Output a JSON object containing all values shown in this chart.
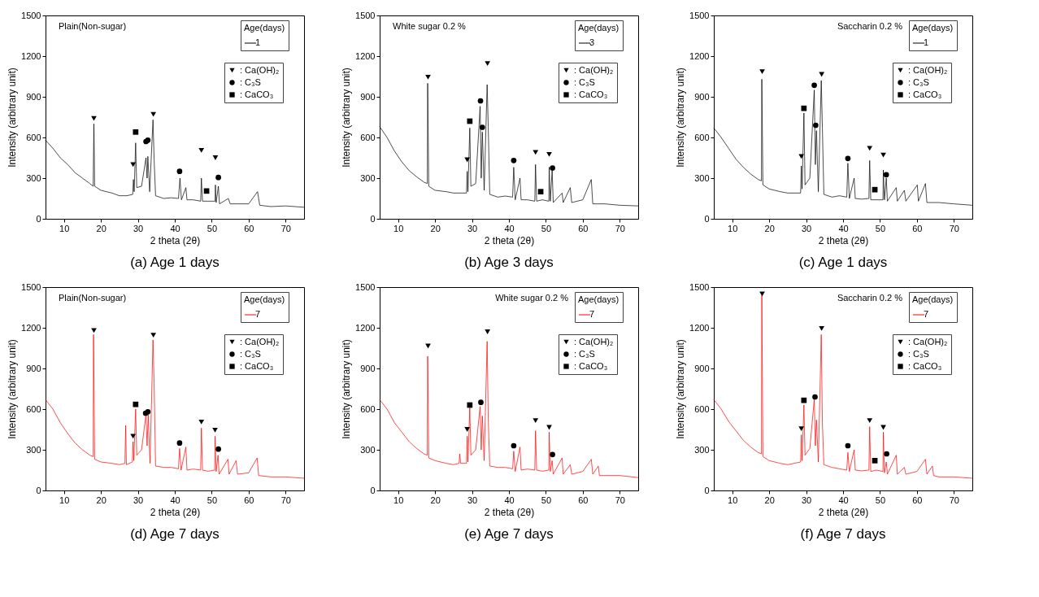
{
  "chart_data": [
    {
      "type": "line",
      "title": "(a) Age 1 days",
      "xlabel": "2 theta (2θ)",
      "ylabel": "Intensity (arbitrary unit)",
      "legend_title": "Age(days)",
      "legend": "top right",
      "annotations": [
        "Plain(Non-sugar)"
      ],
      "xlim": [
        5,
        75
      ],
      "xticks": [
        10,
        20,
        30,
        40,
        50,
        60,
        70
      ],
      "ylim": [
        0,
        1500
      ],
      "yticks": [
        0,
        300,
        600,
        900,
        1200,
        1500
      ],
      "series": [
        {
          "name": "1",
          "type": "line",
          "color": "#000000",
          "x": [
            5,
            7,
            9,
            11,
            13,
            15,
            17,
            17.9,
            18.1,
            18.3,
            20,
            23,
            25,
            27,
            28.6,
            28.8,
            29,
            29.4,
            29.7,
            31,
            32.2,
            32.5,
            32.7,
            33.2,
            34.1,
            34.4,
            34.8,
            37,
            39,
            41,
            41.4,
            41.8,
            43,
            43.3,
            45,
            47,
            47.2,
            47.5,
            49,
            50.9,
            51,
            51.2,
            51.8,
            52.1,
            54.5,
            55,
            57,
            60,
            62.4,
            63,
            66,
            70,
            75
          ],
          "values": [
            580,
            520,
            450,
            400,
            340,
            300,
            260,
            240,
            700,
            240,
            210,
            190,
            170,
            170,
            180,
            290,
            200,
            560,
            230,
            240,
            450,
            300,
            460,
            200,
            730,
            440,
            170,
            150,
            155,
            150,
            300,
            140,
            230,
            140,
            140,
            130,
            300,
            130,
            130,
            130,
            250,
            120,
            240,
            110,
            150,
            110,
            110,
            110,
            200,
            100,
            90,
            95,
            85
          ]
        },
        {
          "name": ": Ca(OH)₂",
          "type": "scatter",
          "marker": "triangle",
          "color": "#000000",
          "x": [
            18.1,
            28.7,
            34.2,
            47.2,
            51
          ],
          "values": [
            740,
            400,
            770,
            505,
            450
          ]
        },
        {
          "name": ": C₃S",
          "type": "scatter",
          "marker": "circle",
          "color": "#000000",
          "x": [
            32.2,
            32.7,
            41.3,
            51.8
          ],
          "values": [
            570,
            580,
            350,
            305
          ]
        },
        {
          "name": ": CaCO₃",
          "type": "scatter",
          "marker": "square",
          "color": "#000000",
          "x": [
            29.4,
            48.6
          ],
          "values": [
            640,
            205
          ]
        }
      ]
    },
    {
      "type": "line",
      "title": "(b) Age 3 days",
      "xlabel": "2 theta (2θ)",
      "ylabel": "Intensity (arbitrary unit)",
      "legend_title": "Age(days)",
      "legend": "top right",
      "annotations": [
        "White sugar 0.2 %"
      ],
      "xlim": [
        5,
        75
      ],
      "xticks": [
        10,
        20,
        30,
        40,
        50,
        60,
        70
      ],
      "ylim": [
        0,
        1500
      ],
      "yticks": [
        0,
        300,
        600,
        900,
        1200,
        1500
      ],
      "series": [
        {
          "name": "3",
          "type": "line",
          "color": "#000000",
          "x": [
            5,
            7,
            9,
            11,
            13,
            15,
            17,
            17.9,
            18,
            18.3,
            20,
            23,
            25,
            28.5,
            28.7,
            28.9,
            29.4,
            29.7,
            31,
            32.2,
            32.5,
            32.8,
            33.3,
            34.1,
            34.4,
            34.8,
            37,
            39,
            41,
            41.3,
            41.7,
            43,
            43.3,
            45,
            47,
            47.2,
            47.5,
            49,
            50.8,
            50.9,
            51.2,
            51.7,
            52,
            54.4,
            54.7,
            56.6,
            57,
            60,
            62.3,
            62.7,
            66,
            70,
            75
          ],
          "values": [
            680,
            600,
            500,
            420,
            355,
            310,
            270,
            260,
            1000,
            240,
            210,
            200,
            190,
            190,
            350,
            200,
            670,
            240,
            260,
            830,
            300,
            640,
            210,
            990,
            680,
            180,
            160,
            168,
            160,
            380,
            140,
            300,
            140,
            140,
            130,
            400,
            130,
            140,
            130,
            380,
            130,
            360,
            120,
            190,
            120,
            230,
            120,
            140,
            290,
            110,
            110,
            100,
            95
          ]
        },
        {
          "name": ": Ca(OH)₂",
          "type": "scatter",
          "marker": "triangle",
          "color": "#000000",
          "x": [
            18.1,
            28.7,
            34.2,
            47.2,
            50.9
          ],
          "values": [
            1045,
            435,
            1145,
            490,
            475
          ]
        },
        {
          "name": ": C₃S",
          "type": "scatter",
          "marker": "circle",
          "color": "#000000",
          "x": [
            32.3,
            32.8,
            41.3,
            51.8
          ],
          "values": [
            870,
            675,
            430,
            375
          ]
        },
        {
          "name": ": CaCO₃",
          "type": "scatter",
          "marker": "square",
          "color": "#000000",
          "x": [
            29.4,
            48.6
          ],
          "values": [
            720,
            200
          ]
        }
      ]
    },
    {
      "type": "line",
      "title": "(c) Age 1 days",
      "xlabel": "2 theta (2θ)",
      "ylabel": "Intensity (arbitrary unit)",
      "legend_title": "Age(days)",
      "legend": "top right",
      "annotations": [
        "Saccharin 0.2 %"
      ],
      "xlim": [
        5,
        75
      ],
      "xticks": [
        10,
        20,
        30,
        40,
        50,
        60,
        70
      ],
      "ylim": [
        0,
        1500
      ],
      "yticks": [
        0,
        300,
        600,
        900,
        1200,
        1500
      ],
      "series": [
        {
          "name": "1",
          "type": "line",
          "color": "#000000",
          "x": [
            5,
            7,
            9,
            11,
            13,
            15,
            17,
            17.9,
            18,
            18.3,
            20,
            23,
            25,
            28.5,
            28.7,
            28.9,
            29.4,
            29.7,
            31,
            32.2,
            32.5,
            32.8,
            33.3,
            34.1,
            34.4,
            34.8,
            37,
            39,
            41,
            41.3,
            41.7,
            43,
            43.3,
            45,
            47,
            47.2,
            47.5,
            49,
            50.8,
            50.9,
            51.2,
            51.7,
            52,
            54.4,
            54.7,
            56.6,
            57,
            60.1,
            60.4,
            62.3,
            62.7,
            66,
            70,
            75
          ],
          "values": [
            670,
            600,
            520,
            440,
            380,
            330,
            290,
            280,
            1030,
            250,
            220,
            200,
            190,
            190,
            390,
            220,
            780,
            250,
            300,
            950,
            400,
            650,
            200,
            1020,
            670,
            180,
            160,
            170,
            160,
            410,
            150,
            300,
            150,
            145,
            150,
            430,
            140,
            140,
            140,
            360,
            140,
            300,
            130,
            230,
            130,
            210,
            130,
            250,
            130,
            260,
            120,
            120,
            110,
            100
          ]
        },
        {
          "name": ": Ca(OH)₂",
          "type": "scatter",
          "marker": "triangle",
          "color": "#000000",
          "x": [
            18.1,
            28.7,
            34.2,
            47.2,
            50.9
          ],
          "values": [
            1085,
            460,
            1065,
            520,
            470
          ]
        },
        {
          "name": ": C₃S",
          "type": "scatter",
          "marker": "circle",
          "color": "#000000",
          "x": [
            32.2,
            32.6,
            41.3,
            51.7
          ],
          "values": [
            985,
            690,
            445,
            325
          ]
        },
        {
          "name": ": CaCO₃",
          "type": "scatter",
          "marker": "square",
          "color": "#000000",
          "x": [
            29.4,
            48.6
          ],
          "values": [
            815,
            215
          ]
        }
      ]
    },
    {
      "type": "line",
      "title": "(d) Age 7 days",
      "xlabel": "2 theta (2θ)",
      "ylabel": "Intensity (arbitrary unit)",
      "legend_title": "Age(days)",
      "legend": "top right",
      "annotations": [
        "Plain(Non-sugar)"
      ],
      "xlim": [
        5,
        75
      ],
      "xticks": [
        10,
        20,
        30,
        40,
        50,
        60,
        70
      ],
      "ylim": [
        0,
        1500
      ],
      "yticks": [
        0,
        300,
        600,
        900,
        1200,
        1500
      ],
      "series": [
        {
          "name": "7",
          "type": "line",
          "color": "#ff0000",
          "x": [
            5,
            7,
            9,
            11,
            13,
            15,
            17,
            17.9,
            18,
            18.3,
            20,
            23,
            25,
            26.5,
            26.7,
            26.9,
            28.5,
            28.7,
            28.9,
            29.4,
            29.7,
            31,
            32.2,
            32.5,
            32.8,
            33.3,
            34.1,
            34.4,
            34.8,
            37,
            39,
            41,
            41.3,
            41.7,
            43,
            43.3,
            45,
            47,
            47.2,
            47.5,
            49,
            50.8,
            50.9,
            51.2,
            51.7,
            52,
            54.4,
            54.7,
            56.6,
            57,
            60,
            62.3,
            62.7,
            66,
            70,
            75
          ],
          "values": [
            670,
            600,
            500,
            420,
            350,
            300,
            260,
            250,
            1150,
            230,
            210,
            200,
            190,
            200,
            480,
            190,
            210,
            360,
            220,
            600,
            260,
            300,
            560,
            330,
            560,
            200,
            1110,
            790,
            180,
            170,
            170,
            160,
            310,
            150,
            320,
            150,
            158,
            150,
            460,
            150,
            142,
            150,
            400,
            140,
            260,
            120,
            230,
            120,
            220,
            120,
            130,
            240,
            110,
            100,
            100,
            90
          ]
        },
        {
          "name": ": Ca(OH)₂",
          "type": "scatter",
          "marker": "triangle",
          "color": "#000000",
          "x": [
            18.1,
            28.7,
            34.2,
            47.2,
            50.9
          ],
          "values": [
            1180,
            400,
            1145,
            505,
            445
          ]
        },
        {
          "name": ": C₃S",
          "type": "scatter",
          "marker": "circle",
          "color": "#000000",
          "x": [
            32.1,
            32.7,
            41.3,
            51.8
          ],
          "values": [
            570,
            580,
            350,
            305
          ]
        },
        {
          "name": ": CaCO₃",
          "type": "scatter",
          "marker": "square",
          "color": "#000000",
          "x": [
            29.4
          ],
          "values": [
            635
          ]
        }
      ]
    },
    {
      "type": "line",
      "title": "(e) Age 7 days",
      "xlabel": "2 theta (2θ)",
      "ylabel": "Intensity (arbitrary unit)",
      "legend_title": "Age(days)",
      "legend": "top right",
      "annotations": [
        "White sugar 0.2 %"
      ],
      "xlim": [
        5,
        75
      ],
      "xticks": [
        10,
        20,
        30,
        40,
        50,
        60,
        70
      ],
      "ylim": [
        0,
        1500
      ],
      "yticks": [
        0,
        300,
        600,
        900,
        1200,
        1500
      ],
      "series": [
        {
          "name": "7",
          "type": "line",
          "color": "#ff0000",
          "x": [
            5,
            7,
            9,
            11,
            13,
            15,
            17,
            17.9,
            18,
            18.3,
            20,
            23,
            25,
            26.5,
            26.7,
            26.9,
            28.5,
            28.7,
            28.9,
            29.4,
            29.7,
            31,
            32.2,
            32.5,
            32.8,
            33.3,
            34.1,
            34.4,
            34.8,
            37,
            39,
            41,
            41.3,
            41.7,
            43,
            43.3,
            45,
            47,
            47.2,
            47.5,
            49,
            50.8,
            50.9,
            51.2,
            51.7,
            52,
            54.4,
            54.7,
            56.6,
            57,
            60,
            62.3,
            62.7,
            64.2,
            64.5,
            66,
            70,
            75
          ],
          "values": [
            670,
            600,
            500,
            430,
            360,
            310,
            270,
            260,
            990,
            240,
            220,
            200,
            190,
            200,
            270,
            200,
            200,
            400,
            210,
            610,
            260,
            300,
            620,
            300,
            550,
            220,
            1100,
            530,
            180,
            170,
            170,
            160,
            290,
            140,
            320,
            150,
            158,
            150,
            440,
            150,
            142,
            150,
            430,
            140,
            220,
            120,
            240,
            120,
            190,
            120,
            140,
            230,
            120,
            180,
            110,
            110,
            110,
            95
          ]
        },
        {
          "name": ": Ca(OH)₂",
          "type": "scatter",
          "marker": "triangle",
          "color": "#000000",
          "x": [
            18.1,
            28.7,
            34.2,
            47.2,
            50.9
          ],
          "values": [
            1065,
            450,
            1170,
            515,
            465
          ]
        },
        {
          "name": ": C₃S",
          "type": "scatter",
          "marker": "circle",
          "color": "#000000",
          "x": [
            32.4,
            41.3,
            51.8
          ],
          "values": [
            650,
            330,
            265
          ]
        },
        {
          "name": ": CaCO₃",
          "type": "scatter",
          "marker": "square",
          "color": "#000000",
          "x": [
            29.4
          ],
          "values": [
            630
          ]
        }
      ]
    },
    {
      "type": "line",
      "title": "(f) Age 7 days",
      "xlabel": "2 theta (2θ)",
      "ylabel": "Intensity (arbitrary unit)",
      "legend_title": "Age(days)",
      "legend": "top right",
      "annotations": [
        "Saccharin 0.2 %"
      ],
      "xlim": [
        5,
        75
      ],
      "xticks": [
        10,
        20,
        30,
        40,
        50,
        60,
        70
      ],
      "ylim": [
        0,
        1500
      ],
      "yticks": [
        0,
        300,
        600,
        900,
        1200,
        1500
      ],
      "series": [
        {
          "name": "7",
          "type": "line",
          "color": "#ff0000",
          "x": [
            5,
            7,
            9,
            11,
            13,
            15,
            17,
            17.9,
            18,
            18.3,
            20,
            23,
            25,
            28.5,
            28.7,
            28.9,
            29.4,
            29.7,
            31,
            32.2,
            32.5,
            32.8,
            33.3,
            34.1,
            34.4,
            34.8,
            37,
            39,
            41,
            41.3,
            41.7,
            43,
            43.3,
            45,
            47,
            47.2,
            47.5,
            49,
            50.8,
            50.9,
            51.2,
            51.7,
            52,
            54.4,
            54.7,
            56.6,
            57,
            60,
            62.3,
            62.7,
            64.2,
            64.5,
            66,
            70,
            75
          ],
          "values": [
            670,
            600,
            510,
            440,
            370,
            320,
            280,
            270,
            1440,
            250,
            220,
            200,
            190,
            210,
            410,
            220,
            630,
            260,
            310,
            670,
            330,
            520,
            210,
            1150,
            500,
            190,
            170,
            160,
            150,
            280,
            140,
            300,
            150,
            145,
            150,
            470,
            140,
            150,
            140,
            430,
            130,
            210,
            120,
            260,
            120,
            170,
            120,
            140,
            230,
            120,
            180,
            110,
            100,
            100,
            90
          ]
        },
        {
          "name": ": Ca(OH)₂",
          "type": "scatter",
          "marker": "triangle",
          "color": "#000000",
          "x": [
            18.1,
            28.7,
            34.2,
            47.2,
            50.9
          ],
          "values": [
            1450,
            455,
            1195,
            515,
            465
          ]
        },
        {
          "name": ": C₃S",
          "type": "scatter",
          "marker": "circle",
          "color": "#000000",
          "x": [
            32.4,
            41.3,
            51.8
          ],
          "values": [
            690,
            330,
            270
          ]
        },
        {
          "name": ": CaCO₃",
          "type": "scatter",
          "marker": "square",
          "color": "#000000",
          "x": [
            29.4,
            48.6
          ],
          "values": [
            665,
            220
          ]
        }
      ]
    }
  ]
}
